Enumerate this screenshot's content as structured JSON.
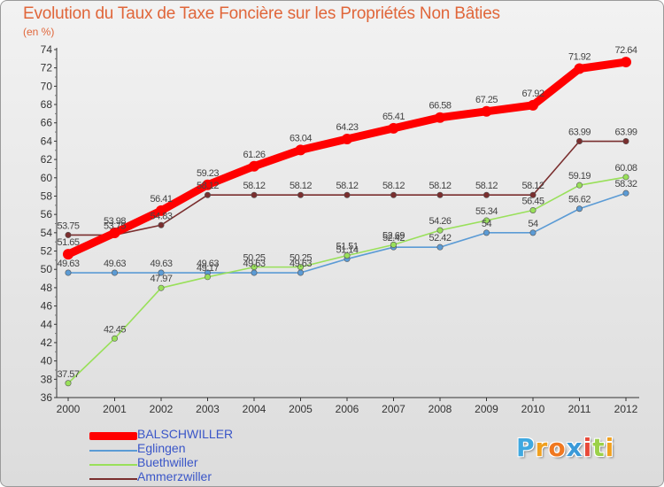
{
  "header": {
    "title": "Evolution du Taux de Taxe Foncière sur les Propriétés Non Bâties",
    "subtitle": "(en %)"
  },
  "chart_data": {
    "type": "line",
    "title": "Evolution du Taux de Taxe Foncière sur les Propriétés Non Bâties",
    "ylabel": "(en %)",
    "xlabel": "",
    "ylim": [
      36,
      74
    ],
    "yticks": [
      36,
      38,
      40,
      42,
      44,
      46,
      48,
      50,
      52,
      54,
      56,
      58,
      60,
      62,
      64,
      66,
      68,
      70,
      72,
      74
    ],
    "x": [
      "2000",
      "2001",
      "2002",
      "2003",
      "2004",
      "2005",
      "2006",
      "2007",
      "2008",
      "2009",
      "2010",
      "2011",
      "2012"
    ],
    "grid": false,
    "series": [
      {
        "name": "BALSCHWILLER",
        "color": "#ff0000",
        "values": [
          51.65,
          53.98,
          56.41,
          59.23,
          61.26,
          63.04,
          64.23,
          65.41,
          66.58,
          67.25,
          67.92,
          71.92,
          72.64
        ],
        "labels": [
          "51.65",
          "53.98",
          "56.41",
          "59.23",
          "61.26",
          "63.04",
          "64.23",
          "65.41",
          "66.58",
          "67.25",
          "67.92",
          "71.92",
          "72.64"
        ]
      },
      {
        "name": "Eglingen",
        "color": "#5b9bd5",
        "values": [
          49.63,
          49.63,
          49.63,
          49.63,
          49.63,
          49.63,
          51.14,
          52.42,
          52.42,
          54,
          54,
          56.62,
          58.32
        ],
        "labels": [
          "49.63",
          "49.63",
          "49.63",
          "49.63",
          "49.63",
          "49.63",
          "51.14",
          "52.42",
          "52.42",
          "54",
          "54",
          "56.62",
          "58.32"
        ]
      },
      {
        "name": "Buethwiller",
        "color": "#99e05a",
        "values": [
          37.57,
          42.45,
          47.97,
          49.17,
          50.25,
          50.25,
          51.51,
          52.69,
          54.26,
          55.34,
          56.45,
          59.19,
          60.08
        ],
        "labels": [
          "37.57",
          "42.45",
          "47.97",
          "49.17",
          "50.25",
          "50.25",
          "51.51",
          "52.69",
          "54.26",
          "55.34",
          "56.45",
          "59.19",
          "60.08"
        ]
      },
      {
        "name": "Ammerzwiller",
        "color": "#7a2e2e",
        "values": [
          53.75,
          53.75,
          54.83,
          58.12,
          58.12,
          58.12,
          58.12,
          58.12,
          58.12,
          58.12,
          58.12,
          63.99,
          63.99
        ],
        "labels": [
          "53.75",
          "53.75",
          "54.83",
          "58.12",
          "58.12",
          "58.12",
          "58.12",
          "58.12",
          "58.12",
          "58.12",
          "58.12",
          "63.99",
          "63.99"
        ]
      }
    ]
  },
  "legend": {
    "items": [
      {
        "label": "BALSCHWILLER",
        "color": "#ff0000"
      },
      {
        "label": "Eglingen",
        "color": "#5b9bd5"
      },
      {
        "label": "Buethwiller",
        "color": "#99e05a"
      },
      {
        "label": "Ammerzwiller",
        "color": "#7a2e2e"
      }
    ]
  },
  "logo": {
    "letters": [
      "P",
      "r",
      "o",
      "x",
      "i",
      "t",
      "i"
    ],
    "colors": [
      "#3fa8e0",
      "#f0a020",
      "#f07820",
      "#3a9ad9",
      "#e84a3a",
      "#9bd14a",
      "#f0a020"
    ]
  }
}
